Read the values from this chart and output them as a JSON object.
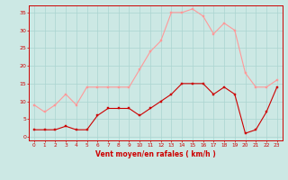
{
  "hours": [
    0,
    1,
    2,
    3,
    4,
    5,
    6,
    7,
    8,
    9,
    10,
    11,
    12,
    13,
    14,
    15,
    16,
    17,
    18,
    19,
    20,
    21,
    22,
    23
  ],
  "wind_avg": [
    2,
    2,
    2,
    3,
    2,
    2,
    6,
    8,
    8,
    8,
    6,
    8,
    10,
    12,
    15,
    15,
    15,
    12,
    14,
    12,
    1,
    2,
    7,
    14
  ],
  "wind_gust": [
    9,
    7,
    9,
    12,
    9,
    14,
    14,
    14,
    14,
    14,
    19,
    24,
    27,
    35,
    35,
    36,
    34,
    29,
    32,
    30,
    18,
    14,
    14,
    16
  ],
  "bg_color": "#cce8e4",
  "grid_color": "#aad4d0",
  "avg_color": "#cc0000",
  "gust_color": "#ff9999",
  "xlabel": "Vent moyen/en rafales ( km/h )",
  "ylim": [
    -1,
    37
  ],
  "xlim": [
    -0.5,
    23.5
  ],
  "yticks": [
    0,
    5,
    10,
    15,
    20,
    25,
    30,
    35
  ],
  "xticks": [
    0,
    1,
    2,
    3,
    4,
    5,
    6,
    7,
    8,
    9,
    10,
    11,
    12,
    13,
    14,
    15,
    16,
    17,
    18,
    19,
    20,
    21,
    22,
    23
  ],
  "marker_size": 2.0,
  "line_width": 0.8
}
